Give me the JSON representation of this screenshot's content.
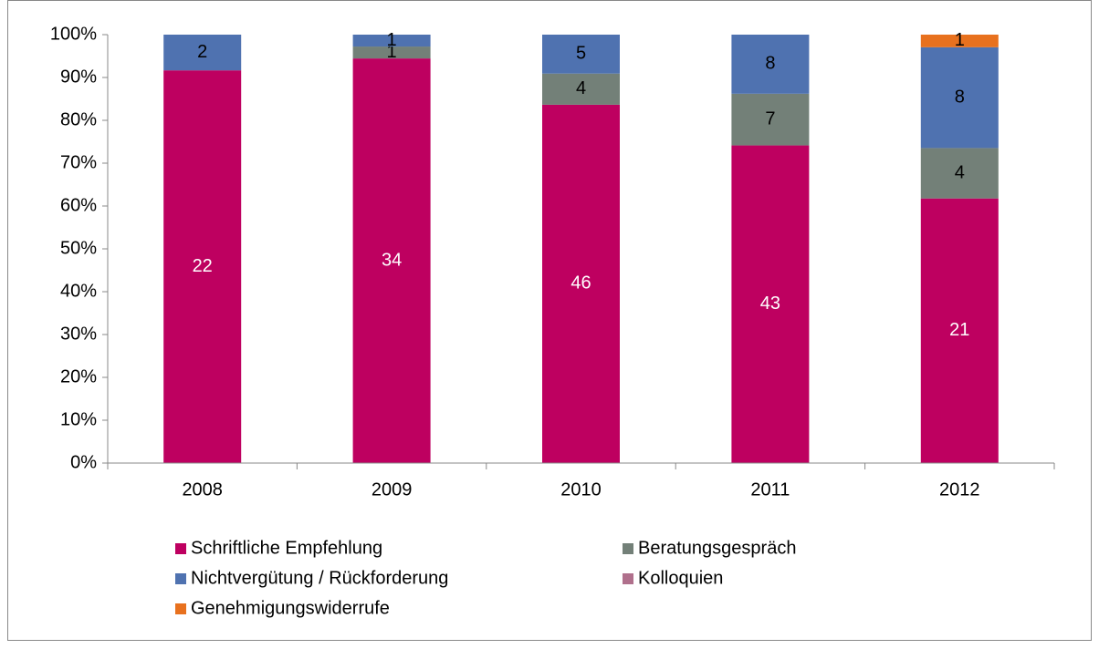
{
  "chart_data": {
    "type": "bar",
    "stacking": "percent",
    "categories": [
      "2008",
      "2009",
      "2010",
      "2011",
      "2012"
    ],
    "series": [
      {
        "name": "Schriftliche Empfehlung",
        "color": "#BE0060",
        "label_color": "#ffffff",
        "values": [
          22,
          34,
          46,
          43,
          21
        ]
      },
      {
        "name": "Beratungsgespräch",
        "color": "#738078",
        "label_color": "#000000",
        "values": [
          0,
          1,
          4,
          7,
          4
        ]
      },
      {
        "name": "Nichtvergütung / Rückforderung",
        "color": "#4F72B0",
        "label_color": "#000000",
        "values": [
          2,
          1,
          5,
          8,
          8
        ]
      },
      {
        "name": "Kolloquien",
        "color": "#B0708C",
        "label_color": "#000000",
        "values": [
          0,
          0,
          0,
          0,
          0
        ]
      },
      {
        "name": "Genehmigungswiderrufe",
        "color": "#E8711E",
        "label_color": "#000000",
        "values": [
          0,
          0,
          0,
          0,
          1
        ]
      }
    ],
    "ylim": [
      0,
      100
    ],
    "yticks": [
      {
        "value": 0,
        "label": "0%"
      },
      {
        "value": 10,
        "label": "10%"
      },
      {
        "value": 20,
        "label": "20%"
      },
      {
        "value": 30,
        "label": "30%"
      },
      {
        "value": 40,
        "label": "40%"
      },
      {
        "value": 50,
        "label": "50%"
      },
      {
        "value": 60,
        "label": "60%"
      },
      {
        "value": 70,
        "label": "70%"
      },
      {
        "value": 80,
        "label": "80%"
      },
      {
        "value": 90,
        "label": "90%"
      },
      {
        "value": 100,
        "label": "100%"
      }
    ],
    "grid": false,
    "legend": "bottom"
  }
}
